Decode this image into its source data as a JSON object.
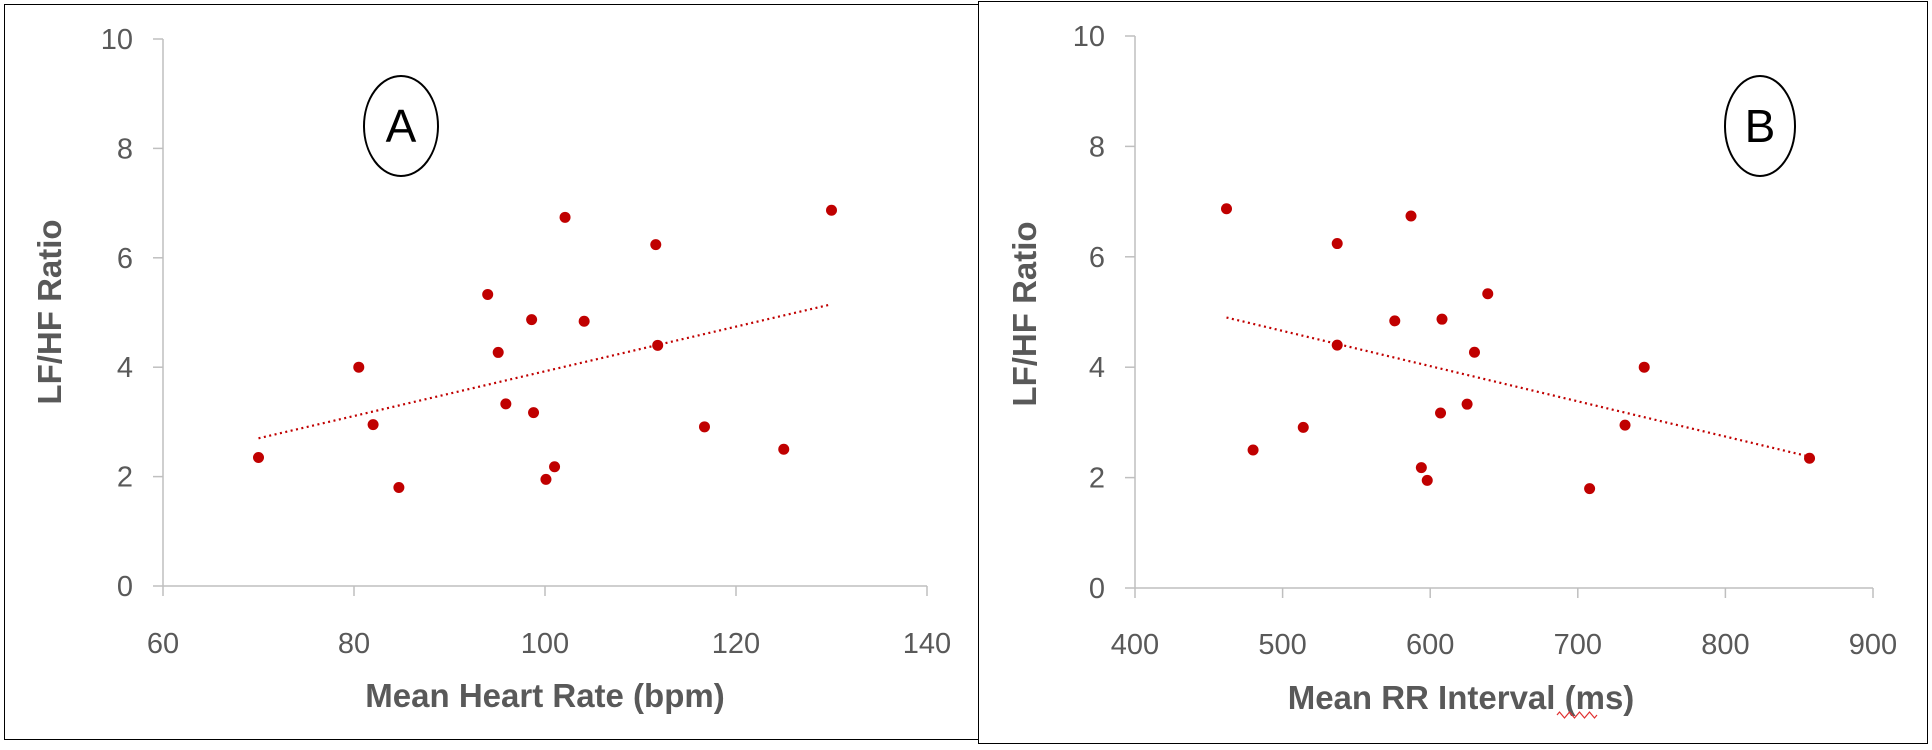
{
  "chart_data": [
    {
      "type": "scatter",
      "panel_label": "A",
      "xlabel": "Mean Heart Rate (bpm)",
      "ylabel": "LF/HF Ratio",
      "xlim": [
        60,
        140
      ],
      "ylim": [
        0,
        10
      ],
      "xticks": [
        60,
        80,
        100,
        120,
        140
      ],
      "yticks": [
        0,
        2,
        4,
        6,
        8,
        10
      ],
      "grid": false,
      "point_color": "#C00000",
      "trendline": {
        "style": "dotted linear",
        "color": "#C00000",
        "x": [
          70,
          130
        ],
        "y": [
          2.7,
          5.15
        ]
      },
      "points": [
        {
          "x": 70,
          "y": 2.35
        },
        {
          "x": 80.5,
          "y": 4.0
        },
        {
          "x": 82,
          "y": 2.95
        },
        {
          "x": 84.7,
          "y": 1.8
        },
        {
          "x": 94,
          "y": 5.33
        },
        {
          "x": 95.1,
          "y": 4.27
        },
        {
          "x": 95.9,
          "y": 3.33
        },
        {
          "x": 98.6,
          "y": 4.87
        },
        {
          "x": 98.8,
          "y": 3.17
        },
        {
          "x": 100.1,
          "y": 1.95
        },
        {
          "x": 101,
          "y": 2.18
        },
        {
          "x": 102.1,
          "y": 6.74
        },
        {
          "x": 104.1,
          "y": 4.84
        },
        {
          "x": 111.6,
          "y": 6.24
        },
        {
          "x": 111.8,
          "y": 4.4
        },
        {
          "x": 116.7,
          "y": 2.91
        },
        {
          "x": 125,
          "y": 2.5
        },
        {
          "x": 130,
          "y": 6.87
        }
      ]
    },
    {
      "type": "scatter",
      "panel_label": "B",
      "xlabel": "Mean RR Interval (ms)",
      "ylabel": "LF/HF Ratio",
      "xlim": [
        400,
        900
      ],
      "ylim": [
        0,
        10
      ],
      "xticks": [
        400,
        500,
        600,
        700,
        800,
        900
      ],
      "yticks": [
        0,
        2,
        4,
        6,
        8,
        10
      ],
      "grid": false,
      "point_color": "#C00000",
      "trendline": {
        "style": "dotted linear",
        "color": "#C00000",
        "x": [
          462,
          857
        ],
        "y": [
          4.9,
          2.38
        ]
      },
      "points": [
        {
          "x": 462,
          "y": 6.87
        },
        {
          "x": 480,
          "y": 2.5
        },
        {
          "x": 514,
          "y": 2.91
        },
        {
          "x": 537,
          "y": 6.24
        },
        {
          "x": 537,
          "y": 4.4
        },
        {
          "x": 576,
          "y": 4.84
        },
        {
          "x": 587,
          "y": 6.74
        },
        {
          "x": 594,
          "y": 2.18
        },
        {
          "x": 598,
          "y": 1.95
        },
        {
          "x": 607,
          "y": 3.17
        },
        {
          "x": 608,
          "y": 4.87
        },
        {
          "x": 625,
          "y": 3.33
        },
        {
          "x": 630,
          "y": 4.27
        },
        {
          "x": 639,
          "y": 5.33
        },
        {
          "x": 708,
          "y": 1.8
        },
        {
          "x": 732,
          "y": 2.95
        },
        {
          "x": 745,
          "y": 4.0
        },
        {
          "x": 857,
          "y": 2.35
        }
      ]
    }
  ]
}
